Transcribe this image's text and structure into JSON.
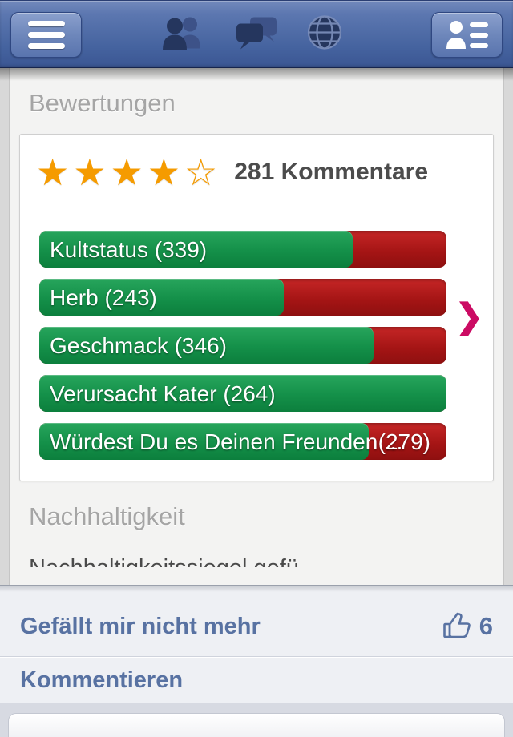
{
  "navbar": {
    "menu_icon": "hamburger-menu",
    "friends_icon": "friends",
    "messages_icon": "messages",
    "globe_icon": "notifications-globe",
    "contacts_icon": "contact-list"
  },
  "ratings_section": {
    "title": "Bewertungen",
    "stars_filled": 4,
    "stars_empty": 1,
    "comments_text": "281 Kommentare",
    "chevron": "❯",
    "bars": [
      {
        "label": "Kultstatus (339)",
        "percent": 77
      },
      {
        "label": "Herb (243)",
        "percent": 60
      },
      {
        "label": "Geschmack (346)",
        "percent": 82
      },
      {
        "label": "Verursacht Kater (264)",
        "percent": 100
      },
      {
        "label": "Würdest Du es Deinen Freunden ...",
        "right_label": "(279)",
        "percent": 81
      }
    ]
  },
  "sustainability_section": {
    "title": "Nachhaltigkeit",
    "clipped_line": "Nachhaltigkeitssiegel gefü"
  },
  "feed_actions": {
    "unlike_label": "Gefällt mir nicht mehr",
    "like_count": "6",
    "comment_label": "Kommentieren"
  },
  "colors": {
    "green": "#149049",
    "red": "#a31414",
    "star_orange": "#f59b00",
    "fb_blue_text": "#5872a2",
    "chevron_pink": "#cb0b63"
  }
}
